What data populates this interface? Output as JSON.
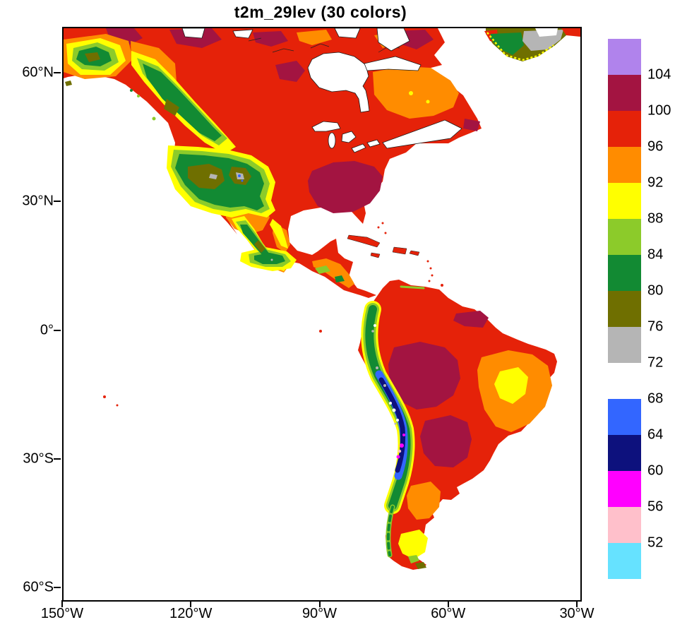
{
  "title": "t2m_29lev (30 colors)",
  "axes": {
    "y_tick_labels": [
      "60°N",
      "30°N",
      "0°",
      "30°S",
      "60°S"
    ],
    "x_tick_labels": [
      "150°W",
      "120°W",
      "90°W",
      "60°W",
      "30°W"
    ]
  },
  "palette": {
    "violet": "#B083EC",
    "maroon": "#A31441",
    "red": "#E52209",
    "orange": "#FF8C00",
    "yellow": "#FFFF00",
    "yellowgreen": "#8CCB2A",
    "green": "#128A33",
    "olive": "#6F6F00",
    "gray": "#B5B5B5",
    "white": "#FFFFFF",
    "blue": "#3366FF",
    "navy": "#0D117D",
    "magenta": "#FF00FF",
    "pink": "#FFC0CB",
    "cyan": "#66E2FF"
  },
  "colorbar": {
    "colors_top_to_bottom": [
      "violet",
      "maroon",
      "red",
      "orange",
      "yellow",
      "yellowgreen",
      "green",
      "olive",
      "gray",
      "white",
      "blue",
      "navy",
      "magenta",
      "pink",
      "cyan"
    ],
    "labels_top_to_bottom": [
      "104",
      "100",
      "96",
      "92",
      "88",
      "84",
      "80",
      "76",
      "72",
      "68",
      "64",
      "60",
      "56",
      "52"
    ]
  },
  "chart_data": {
    "type": "heatmap",
    "title": "t2m_29lev (30 colors)",
    "variable": "t2m",
    "levels_low_to_high": [
      52,
      56,
      60,
      64,
      68,
      72,
      76,
      80,
      84,
      88,
      92,
      96,
      100,
      104
    ],
    "colors_low_to_high": [
      "#66E2FF",
      "#FFC0CB",
      "#FF00FF",
      "#0D117D",
      "#3366FF",
      "#FFFFFF",
      "#B5B5B5",
      "#6F6F00",
      "#128A33",
      "#8CCB2A",
      "#FFFF00",
      "#FF8C00",
      "#E52209",
      "#A31441",
      "#B083EC"
    ],
    "x_ticks": [
      "150°W",
      "120°W",
      "90°W",
      "60°W",
      "30°W"
    ],
    "y_ticks": [
      "60°N",
      "30°N",
      "0°",
      "30°S",
      "60°S"
    ],
    "extent": {
      "lon": [
        "150°W",
        "30°W"
      ],
      "lat": [
        "62°S",
        "71°N"
      ]
    },
    "legend_position": "right-vertical-labelbar",
    "grid": false,
    "annotations": "Filled-contour 2 m temperature over the Americas: reds/maroons over lowlands and tropics, orange-yellow-green over western cordillera and Mexico, olive/gray over highest Rockies, navy-blue-magenta core along the high Andes, gray/white over the Greenland fragment."
  }
}
